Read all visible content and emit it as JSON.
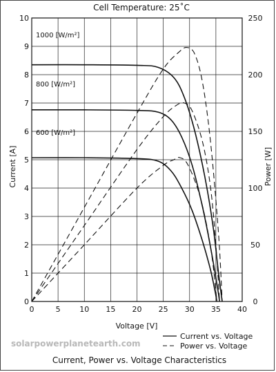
{
  "chart_data": {
    "type": "line",
    "title": "Cell Temperature:  25˚C",
    "caption": "Current, Power vs. Voltage Characteristics",
    "watermark": "solarpowerplanetearth.com",
    "xlabel": "Voltage [V]",
    "ylabel_left": "Current [A]",
    "ylabel_right": "Power [W]",
    "xlim": [
      0,
      40
    ],
    "ylim_left": [
      0,
      10
    ],
    "ylim_right": [
      0,
      250
    ],
    "x_ticks": [
      0,
      5,
      10,
      15,
      20,
      25,
      30,
      35,
      40
    ],
    "y_ticks_left": [
      0,
      1,
      2,
      3,
      4,
      5,
      6,
      7,
      8,
      9,
      10
    ],
    "y_ticks_right": [
      0,
      50,
      100,
      150,
      200,
      250
    ],
    "grid": true,
    "legend_position": "bottom-right",
    "legend": [
      {
        "label": "Current vs. Voltage",
        "style": "solid"
      },
      {
        "label": "Power vs. Voltage",
        "style": "dashed"
      }
    ],
    "irradiance_labels": [
      "1000 [W/m²]",
      "800 [W/m²]",
      "600 [W/m²]"
    ],
    "series": [
      {
        "name": "1000 [W/m²] — Current vs. Voltage",
        "axis": "left",
        "style": "solid",
        "points": [
          [
            0,
            8.35
          ],
          [
            10,
            8.35
          ],
          [
            20,
            8.33
          ],
          [
            24,
            8.26
          ],
          [
            27,
            7.9
          ],
          [
            29,
            7.2
          ],
          [
            31,
            6.0
          ],
          [
            33,
            4.3
          ],
          [
            34.5,
            2.6
          ],
          [
            35.5,
            1.0
          ],
          [
            36.2,
            0
          ]
        ]
      },
      {
        "name": "1000 [W/m²] — Power vs. Voltage",
        "axis": "right",
        "style": "dashed",
        "points": [
          [
            0,
            0
          ],
          [
            10,
            83
          ],
          [
            20,
            166
          ],
          [
            25,
            205
          ],
          [
            28,
            220
          ],
          [
            29.5,
            224
          ],
          [
            31,
            218
          ],
          [
            32.5,
            192
          ],
          [
            34,
            140
          ],
          [
            35.5,
            60
          ],
          [
            36.2,
            0
          ]
        ]
      },
      {
        "name": "800 [W/m²] — Current vs. Voltage",
        "axis": "left",
        "style": "solid",
        "points": [
          [
            0,
            6.76
          ],
          [
            10,
            6.76
          ],
          [
            20,
            6.74
          ],
          [
            24,
            6.68
          ],
          [
            26.5,
            6.4
          ],
          [
            28.5,
            5.8
          ],
          [
            30.5,
            4.8
          ],
          [
            32.5,
            3.3
          ],
          [
            34,
            1.9
          ],
          [
            35.3,
            0.5
          ],
          [
            35.7,
            0
          ]
        ]
      },
      {
        "name": "800 [W/m²] — Power vs. Voltage",
        "axis": "right",
        "style": "dashed",
        "points": [
          [
            0,
            0
          ],
          [
            10,
            67
          ],
          [
            20,
            134
          ],
          [
            25,
            163
          ],
          [
            27.5,
            173
          ],
          [
            29,
            175
          ],
          [
            30.5,
            168
          ],
          [
            32.5,
            140
          ],
          [
            34,
            100
          ],
          [
            35,
            50
          ],
          [
            35.7,
            0
          ]
        ]
      },
      {
        "name": "600 [W/m²] — Current vs. Voltage",
        "axis": "left",
        "style": "solid",
        "points": [
          [
            0,
            5.07
          ],
          [
            10,
            5.07
          ],
          [
            20,
            5.04
          ],
          [
            24,
            4.95
          ],
          [
            26.5,
            4.6
          ],
          [
            28.5,
            4.0
          ],
          [
            30.5,
            3.2
          ],
          [
            32.5,
            2.1
          ],
          [
            34,
            1.1
          ],
          [
            34.8,
            0.4
          ],
          [
            35.2,
            0
          ]
        ]
      },
      {
        "name": "600 [W/m²] — Power vs. Voltage",
        "axis": "right",
        "style": "dashed",
        "points": [
          [
            0,
            0
          ],
          [
            10,
            50
          ],
          [
            20,
            100
          ],
          [
            25,
            120
          ],
          [
            27,
            125
          ],
          [
            28,
            127
          ],
          [
            29.5,
            122
          ],
          [
            31.5,
            100
          ],
          [
            33,
            73
          ],
          [
            34.3,
            38
          ],
          [
            35.2,
            0
          ]
        ]
      }
    ]
  }
}
